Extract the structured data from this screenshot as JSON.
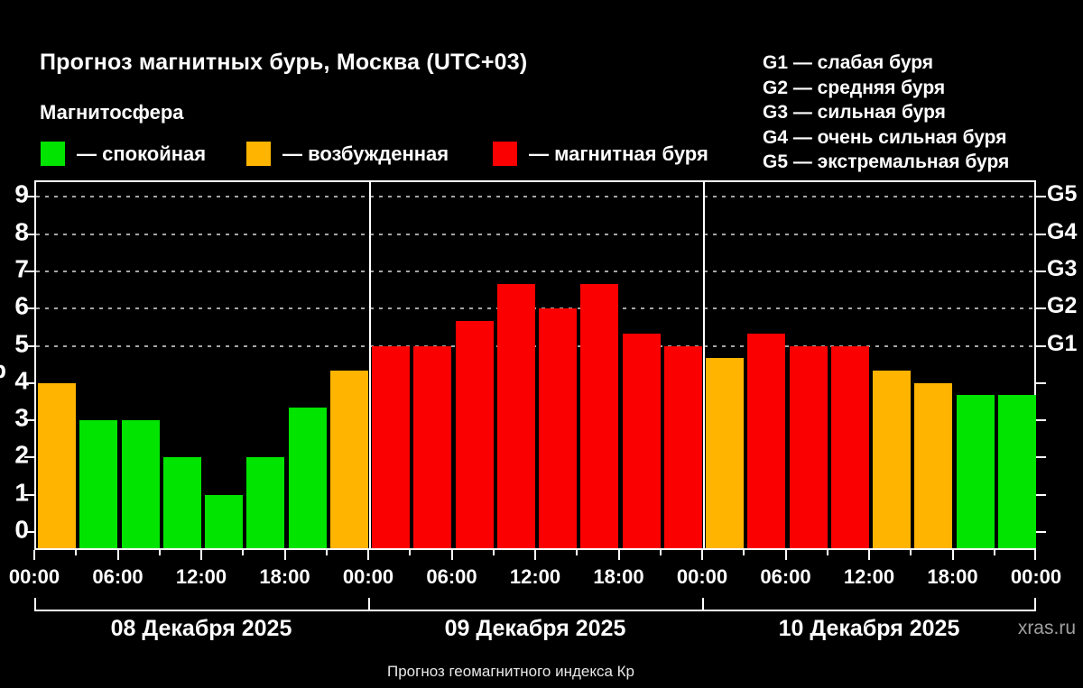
{
  "header": {
    "title": "Прогноз магнитных бурь, Москва (UTC+03)",
    "subtitle": "Магнитосфера"
  },
  "legend": {
    "items": [
      {
        "label": "— спокойная",
        "level": "quiet",
        "color": "#00e400"
      },
      {
        "label": "— возбужденная",
        "level": "excited",
        "color": "#ffb400"
      },
      {
        "label": "— магнитная буря",
        "level": "storm",
        "color": "#fb0000"
      }
    ]
  },
  "storm_scale": [
    "G1 — слабая буря",
    "G2 — средняя буря",
    "G3 — сильная буря",
    "G4 — очень сильная буря",
    "G5 — экстремальная буря"
  ],
  "footer": {
    "caption": "Прогноз геомагнитного индекса Кр",
    "watermark": "xras.ru"
  },
  "chart_data": {
    "type": "bar",
    "title": "Прогноз магнитных бурь, Москва (UTC+03)",
    "ylabel": "Кр",
    "ylim": [
      0,
      9
    ],
    "y_ticks": [
      0,
      1,
      2,
      3,
      4,
      5,
      6,
      7,
      8,
      9
    ],
    "gridlines_at": [
      5,
      6,
      7,
      8,
      9
    ],
    "grid_style": "dashed",
    "right_axis": [
      {
        "kp": 5,
        "label": "G1"
      },
      {
        "kp": 6,
        "label": "G2"
      },
      {
        "kp": 7,
        "label": "G3"
      },
      {
        "kp": 8,
        "label": "G4"
      },
      {
        "kp": 9,
        "label": "G5"
      }
    ],
    "interval_hours": 3,
    "x_major_labels": [
      "00:00",
      "06:00",
      "12:00",
      "18:00"
    ],
    "x_end_label": "00:00",
    "level_colors": {
      "quiet": "#00e400",
      "excited": "#ffb400",
      "storm": "#fb0000"
    },
    "days": [
      {
        "date": "08 Декабря 2025",
        "hours": [
          "00:00",
          "03:00",
          "06:00",
          "09:00",
          "12:00",
          "15:00",
          "18:00",
          "21:00"
        ],
        "values": [
          4,
          3,
          3,
          2,
          1,
          2,
          3.33,
          4.33
        ],
        "levels": [
          "excited",
          "quiet",
          "quiet",
          "quiet",
          "quiet",
          "quiet",
          "quiet",
          "excited"
        ]
      },
      {
        "date": "09 Декабря 2025",
        "hours": [
          "00:00",
          "03:00",
          "06:00",
          "09:00",
          "12:00",
          "15:00",
          "18:00",
          "21:00"
        ],
        "values": [
          5,
          5,
          5.67,
          6.67,
          6,
          6.67,
          5.33,
          5
        ],
        "levels": [
          "storm",
          "storm",
          "storm",
          "storm",
          "storm",
          "storm",
          "storm",
          "storm"
        ]
      },
      {
        "date": "10 Декабря 2025",
        "hours": [
          "00:00",
          "03:00",
          "06:00",
          "09:00",
          "12:00",
          "15:00",
          "18:00",
          "21:00"
        ],
        "values": [
          4.67,
          5.33,
          5,
          5,
          4.33,
          4,
          3.67,
          3.67
        ],
        "levels": [
          "excited",
          "storm",
          "storm",
          "storm",
          "excited",
          "excited",
          "quiet",
          "quiet"
        ]
      }
    ]
  }
}
